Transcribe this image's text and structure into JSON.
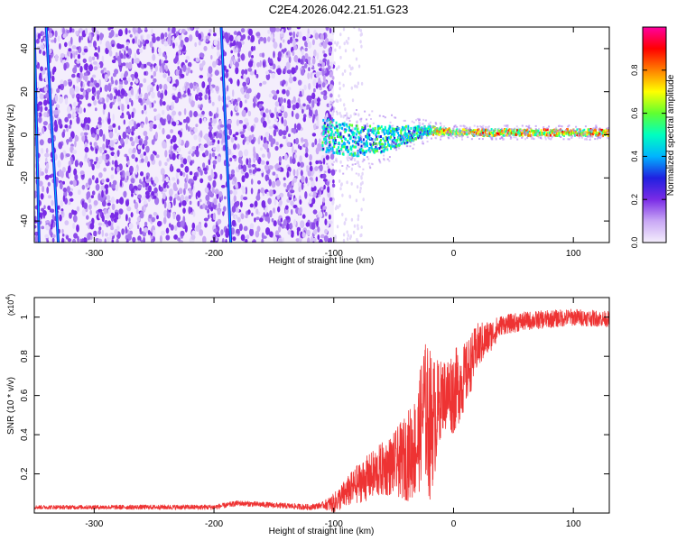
{
  "title": "C2E4.2026.042.21.51.G23",
  "chart_data": [
    {
      "type": "heatmap",
      "name": "spectrogram",
      "xlabel": "Height of straight line (km)",
      "ylabel": "Frequency (Hz)",
      "xlim": [
        -350,
        130
      ],
      "ylim": [
        -50,
        50
      ],
      "xticks": [
        -300,
        -200,
        -100,
        0,
        100
      ],
      "xtick_labels": [
        "-300",
        "-200",
        "-100",
        "0",
        "100"
      ],
      "yticks": [
        -40,
        -20,
        0,
        20,
        40
      ],
      "ytick_labels": [
        "-40",
        "-20",
        "0",
        "20",
        "40"
      ],
      "colorbar": {
        "label": "Normalized spectral amplitude",
        "range": [
          0,
          1
        ],
        "ticks": [
          0,
          0.2,
          0.4,
          0.6,
          0.8
        ],
        "tick_labels": [
          "0.0",
          "0.2",
          "0.4",
          "0.6",
          "0.8"
        ],
        "colormap": [
          "#f4eefc",
          "#c9a8f5",
          "#7a2be6",
          "#2020e0",
          "#00b4ff",
          "#00ffc0",
          "#60ff30",
          "#ffff00",
          "#ff8000",
          "#ff0000",
          "#ff00a0"
        ]
      },
      "noise_region": {
        "x": [
          -350,
          -100
        ],
        "y": [
          -50,
          50
        ]
      },
      "signal_track": {
        "x": [
          -110,
          -80,
          -60,
          -40,
          -20,
          0,
          40,
          80,
          130
        ],
        "freq": [
          0,
          -3,
          -2,
          0,
          2,
          1,
          1,
          1,
          1
        ],
        "spread": [
          8,
          7,
          6,
          4,
          2,
          1.5,
          1.5,
          1.5,
          1.5
        ]
      },
      "streaks": [
        {
          "x_top": -340,
          "x_bottom": -330
        },
        {
          "x_top": -350,
          "x_bottom": -346
        },
        {
          "x_top": -194,
          "x_bottom": -186
        }
      ]
    },
    {
      "type": "line",
      "name": "snr",
      "xlabel": "Height of straight line (km)",
      "ylabel": "SNR (10 * v/v)",
      "scale_note": "(x10",
      "scale_exp": "4",
      "scale_close": ")",
      "xlim": [
        -350,
        130
      ],
      "ylim": [
        0,
        1.1
      ],
      "xticks": [
        -300,
        -200,
        -100,
        0,
        100
      ],
      "xtick_labels": [
        "-300",
        "-200",
        "-100",
        "0",
        "100"
      ],
      "yticks": [
        0.2,
        0.4,
        0.6,
        0.8,
        1
      ],
      "ytick_labels": [
        "0.2",
        "0.4",
        "0.6",
        "0.8",
        "1"
      ],
      "line_color": "#ee3333",
      "trend": {
        "x": [
          -350,
          -200,
          -180,
          -120,
          -100,
          -80,
          -60,
          -40,
          -30,
          -25,
          -20,
          -15,
          -10,
          0,
          10,
          20,
          30,
          40,
          60,
          80,
          100,
          130
        ],
        "y": [
          0.03,
          0.03,
          0.05,
          0.03,
          0.05,
          0.15,
          0.22,
          0.28,
          0.35,
          0.55,
          0.45,
          0.5,
          0.6,
          0.62,
          0.7,
          0.85,
          0.9,
          0.96,
          0.98,
          0.99,
          1.0,
          0.99
        ]
      },
      "noise_amplitude": {
        "x": [
          -350,
          -110,
          -100,
          -80,
          -50,
          -30,
          -20,
          -10,
          0,
          20,
          40,
          130
        ],
        "a": [
          0.01,
          0.015,
          0.05,
          0.1,
          0.16,
          0.28,
          0.4,
          0.18,
          0.22,
          0.12,
          0.05,
          0.04
        ]
      }
    }
  ]
}
